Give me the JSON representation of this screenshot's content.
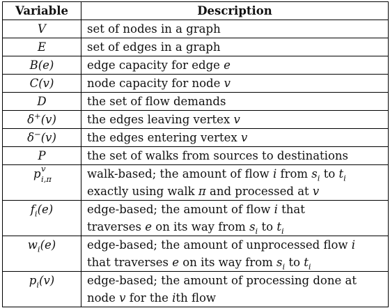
{
  "header": {
    "variable": "Variable",
    "description": "Description"
  },
  "rows": [
    {
      "var": "V",
      "desc": [
        "set of nodes in a graph"
      ]
    },
    {
      "var": "E",
      "desc": [
        "set of edges in a graph"
      ]
    },
    {
      "var": "B(e)",
      "desc": [
        "edge capacity for edge e"
      ]
    },
    {
      "var": "C(v)",
      "desc": [
        "node capacity for node v"
      ]
    },
    {
      "var": "D",
      "desc": [
        "the set of flow demands"
      ]
    },
    {
      "var": "δ+(v)",
      "desc": [
        "the edges leaving vertex v"
      ]
    },
    {
      "var": "δ−(v)",
      "desc": [
        "the edges entering vertex v"
      ]
    },
    {
      "var": "P",
      "desc": [
        "the set of walks from sources to destinations"
      ]
    },
    {
      "var": "p^v_{i,π}",
      "desc": [
        "walk-based; the amount of flow i from s_i to t_i",
        "exactly using walk π and processed at v"
      ]
    },
    {
      "var": "f_i(e)",
      "desc": [
        "edge-based; the amount of flow i that",
        "traverses e on its way from s_i to t_i"
      ]
    },
    {
      "var": "w_i(e)",
      "desc": [
        "edge-based; the amount of unprocessed flow i",
        "that traverses e on its way from s_i to t_i"
      ]
    },
    {
      "var": "p_i(v)",
      "desc": [
        "edge-based; the amount of processing done at",
        "node v for the ith flow"
      ]
    }
  ]
}
